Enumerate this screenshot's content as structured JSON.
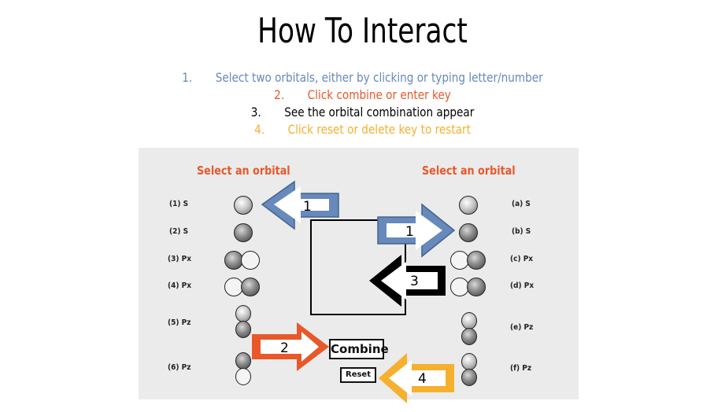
{
  "title": "How To Interact",
  "steps": [
    {
      "num": "1.",
      "text": "Select two orbitals, either by clicking or typing letter/number",
      "color": "#6789bb"
    },
    {
      "num": "2.",
      "text": "Click combine or enter key",
      "color": "#e8582a"
    },
    {
      "num": "3.",
      "text": "See the orbital combination appear",
      "color": "#000000"
    },
    {
      "num": "4.",
      "text": "Click reset or delete key to restart",
      "color": "#f5b02e"
    }
  ],
  "left_header": "Select an orbital",
  "right_header": "Select an orbital",
  "left_orbitals": [
    "(1) S",
    "(2) S",
    "(3) Px",
    "(4) Px",
    "(5) Pz",
    "(6) Pz"
  ],
  "right_orbitals": [
    "(a) S",
    "(b) S",
    "(c) Px",
    "(d) Px",
    "(e) Pz",
    "(f) Pz"
  ],
  "buttons": {
    "combine": "Combine",
    "reset": "Reset"
  },
  "arrows": {
    "a1_left": "1",
    "a1_right": "1",
    "a2": "2",
    "a3": "3",
    "a4": "4"
  },
  "colors": {
    "blue": "#6789bb",
    "orange": "#e8582a",
    "black": "#000000",
    "yellow": "#f5b02e",
    "panel": "#ebebeb"
  }
}
